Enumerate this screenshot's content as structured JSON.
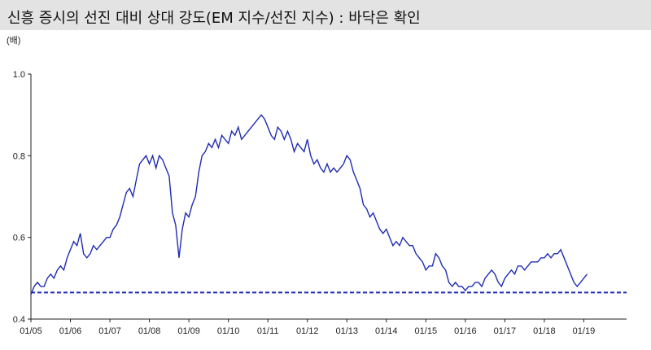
{
  "title": "신흥 증시의 선진 대비 상대 강도(EM 지수/선진 지수) : 바닥은 확인",
  "chart_data": {
    "type": "line",
    "title": "신흥 증시의 선진 대비 상대 강도(EM 지수/선진 지수) : 바닥은 확인",
    "ylabel": "(배)",
    "xlabel": "",
    "ylim": [
      0.4,
      1.0
    ],
    "xlim": [
      "2005-01",
      "2020-02"
    ],
    "y_ticks": [
      "0.4",
      "0.6",
      "0.8",
      "1.0"
    ],
    "x_ticks": [
      "01/05",
      "01/06",
      "01/07",
      "01/08",
      "01/09",
      "01/10",
      "01/11",
      "01/12",
      "01/13",
      "01/14",
      "01/15",
      "01/16",
      "01/17",
      "01/18",
      "01/19"
    ],
    "grid": false,
    "colors": {
      "line": "#1f2bb4",
      "baseline": "#1f2bb4"
    },
    "reference_line": {
      "y": 0.465,
      "style": "dashed"
    },
    "series": [
      {
        "x": [
          "2005-01",
          "2005-02",
          "2005-03",
          "2005-04",
          "2005-05",
          "2005-06",
          "2005-07",
          "2005-08",
          "2005-09",
          "2005-10",
          "2005-11",
          "2005-12",
          "2006-01",
          "2006-02",
          "2006-03",
          "2006-04",
          "2006-05",
          "2006-06",
          "2006-07",
          "2006-08",
          "2006-09",
          "2006-10",
          "2006-11",
          "2006-12",
          "2007-01",
          "2007-02",
          "2007-03",
          "2007-04",
          "2007-05",
          "2007-06",
          "2007-07",
          "2007-08",
          "2007-09",
          "2007-10",
          "2007-11",
          "2007-12",
          "2008-01",
          "2008-02",
          "2008-03",
          "2008-04",
          "2008-05",
          "2008-06",
          "2008-07",
          "2008-08",
          "2008-09",
          "2008-10",
          "2008-11",
          "2008-12",
          "2009-01",
          "2009-02",
          "2009-03",
          "2009-04",
          "2009-05",
          "2009-06",
          "2009-07",
          "2009-08",
          "2009-09",
          "2009-10",
          "2009-11",
          "2009-12",
          "2010-01",
          "2010-02",
          "2010-03",
          "2010-04",
          "2010-05",
          "2010-06",
          "2010-07",
          "2010-08",
          "2010-09",
          "2010-10",
          "2010-11",
          "2010-12",
          "2011-01",
          "2011-02",
          "2011-03",
          "2011-04",
          "2011-05",
          "2011-06",
          "2011-07",
          "2011-08",
          "2011-09",
          "2011-10",
          "2011-11",
          "2011-12",
          "2012-01",
          "2012-02",
          "2012-03",
          "2012-04",
          "2012-05",
          "2012-06",
          "2012-07",
          "2012-08",
          "2012-09",
          "2012-10",
          "2012-11",
          "2012-12",
          "2013-01",
          "2013-02",
          "2013-03",
          "2013-04",
          "2013-05",
          "2013-06",
          "2013-07",
          "2013-08",
          "2013-09",
          "2013-10",
          "2013-11",
          "2013-12",
          "2014-01",
          "2014-02",
          "2014-03",
          "2014-04",
          "2014-05",
          "2014-06",
          "2014-07",
          "2014-08",
          "2014-09",
          "2014-10",
          "2014-11",
          "2014-12",
          "2015-01",
          "2015-02",
          "2015-03",
          "2015-04",
          "2015-05",
          "2015-06",
          "2015-07",
          "2015-08",
          "2015-09",
          "2015-10",
          "2015-11",
          "2015-12",
          "2016-01",
          "2016-02",
          "2016-03",
          "2016-04",
          "2016-05",
          "2016-06",
          "2016-07",
          "2016-08",
          "2016-09",
          "2016-10",
          "2016-11",
          "2016-12",
          "2017-01",
          "2017-02",
          "2017-03",
          "2017-04",
          "2017-05",
          "2017-06",
          "2017-07",
          "2017-08",
          "2017-09",
          "2017-10",
          "2017-11",
          "2017-12",
          "2018-01",
          "2018-02",
          "2018-03",
          "2018-04",
          "2018-05",
          "2018-06",
          "2018-07",
          "2018-08",
          "2018-09",
          "2018-10",
          "2018-11",
          "2018-12",
          "2019-01",
          "2019-02"
        ],
        "values": [
          0.46,
          0.48,
          0.49,
          0.48,
          0.48,
          0.5,
          0.51,
          0.5,
          0.52,
          0.53,
          0.52,
          0.55,
          0.57,
          0.59,
          0.58,
          0.61,
          0.56,
          0.55,
          0.56,
          0.58,
          0.57,
          0.58,
          0.59,
          0.6,
          0.6,
          0.62,
          0.63,
          0.65,
          0.68,
          0.71,
          0.72,
          0.7,
          0.74,
          0.78,
          0.79,
          0.8,
          0.78,
          0.8,
          0.77,
          0.8,
          0.79,
          0.77,
          0.75,
          0.66,
          0.63,
          0.55,
          0.62,
          0.66,
          0.65,
          0.68,
          0.7,
          0.76,
          0.8,
          0.81,
          0.83,
          0.82,
          0.84,
          0.82,
          0.85,
          0.84,
          0.83,
          0.86,
          0.85,
          0.87,
          0.84,
          0.85,
          0.86,
          0.87,
          0.88,
          0.89,
          0.9,
          0.89,
          0.87,
          0.85,
          0.84,
          0.87,
          0.86,
          0.84,
          0.86,
          0.84,
          0.81,
          0.83,
          0.82,
          0.81,
          0.84,
          0.8,
          0.78,
          0.79,
          0.77,
          0.76,
          0.78,
          0.76,
          0.77,
          0.76,
          0.77,
          0.78,
          0.8,
          0.79,
          0.76,
          0.74,
          0.72,
          0.68,
          0.67,
          0.65,
          0.66,
          0.64,
          0.62,
          0.61,
          0.62,
          0.6,
          0.58,
          0.59,
          0.58,
          0.6,
          0.59,
          0.58,
          0.58,
          0.56,
          0.55,
          0.54,
          0.52,
          0.53,
          0.53,
          0.56,
          0.55,
          0.53,
          0.52,
          0.49,
          0.48,
          0.49,
          0.48,
          0.48,
          0.47,
          0.48,
          0.48,
          0.49,
          0.49,
          0.48,
          0.5,
          0.51,
          0.52,
          0.51,
          0.49,
          0.48,
          0.5,
          0.51,
          0.52,
          0.51,
          0.53,
          0.53,
          0.52,
          0.53,
          0.54,
          0.54,
          0.54,
          0.55,
          0.55,
          0.56,
          0.55,
          0.56,
          0.56,
          0.57,
          0.55,
          0.53,
          0.51,
          0.49,
          0.48,
          0.49,
          0.5,
          0.51
        ]
      }
    ]
  }
}
